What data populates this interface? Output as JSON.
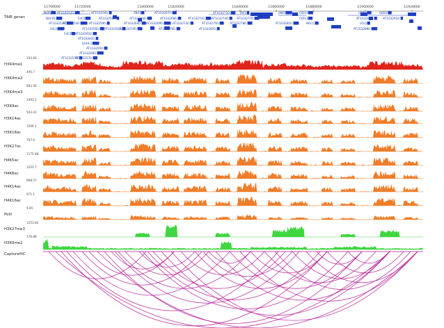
{
  "browser": {
    "axis_ticks": [
      "11700000",
      "11720000",
      "11800000",
      "11820000",
      "11840000",
      "11860000",
      "11880000",
      "11900000",
      "11920000"
    ],
    "genes_track": {
      "label": "TAIR genes",
      "color": "#1f3fc2",
      "gene_labels": [
        "NAP8",
        "AT1G32520.1",
        "AT1G32560.1",
        "ZBF1",
        "AT1G32670.1",
        "AT1G32710.1",
        "TAF1",
        "SNO1",
        "CID11",
        "UBP11",
        "GBSS1",
        "NAC011",
        "FdC2",
        "AT1G32580.1",
        "AT1G32630.1",
        "AT1G32680.1",
        "AT1G32720.1",
        "AT1G32740.1",
        "AT1G32770.1",
        "CID11",
        "AT1G32860.1",
        "AT1G32910.1",
        "AT1G32530.1",
        "AT1G32540.1",
        "AT1G32590.1",
        "AT1G32640.1",
        "AT1G32690.1",
        "AT1G32730.1",
        "AT1G32750.1",
        "AT1G32780.1",
        "AT1G32810.2",
        "NAC13",
        "LOL1",
        "LOL1",
        "AT1G32583.1",
        "AT1G32600.1",
        "AT1G32700.1",
        "AT1G32760.1",
        "AT1G32850.1",
        "AT1G32880.1",
        "FdC2",
        "AT1G32610.1",
        "AT1G32620.1",
        "LEA4-1",
        "AT1G32650.1",
        "AT1G32660.1",
        "AT1G32570.2",
        "AT1G32570.1"
      ]
    },
    "tracks": [
      {
        "label": "H3K4me1",
        "scale": "250.83",
        "color": "#e0241b"
      },
      {
        "label": "H3K4me2",
        "scale": "495.7",
        "color": "#ef7d2a"
      },
      {
        "label": "H3K4me3",
        "scale": "892.56",
        "color": "#ef7d2a"
      },
      {
        "label": "H3K9ac",
        "scale": "1493.1",
        "color": "#ef7d2a"
      },
      {
        "label": "H3K14ac",
        "scale": "503.41",
        "color": "#ef7d2a"
      },
      {
        "label": "H3K18ac",
        "scale": "1506.1",
        "color": "#ef7d2a"
      },
      {
        "label": "H3K27ac",
        "scale": "797.9",
        "color": "#ef7d2a"
      },
      {
        "label": "H4K5ac",
        "scale": "1175.88",
        "color": "#ef7d2a"
      },
      {
        "label": "H4K8ac",
        "scale": "1255.7",
        "color": "#ef7d2a"
      },
      {
        "label": "H4K14ac",
        "scale": "968.57",
        "color": "#ef7d2a"
      },
      {
        "label": "H4K16ac",
        "scale": "971.1",
        "color": "#ef7d2a"
      },
      {
        "label": "PolII",
        "scale": "9.65",
        "color": "#ef7d2a"
      },
      {
        "label": "H3K27me3",
        "scale": "1253.84",
        "color": "#3fd63f"
      },
      {
        "label": "H3K9me2",
        "scale": "176.89",
        "color": "#3fd63f"
      }
    ],
    "capture_track": {
      "label": "CaptureHiC",
      "color": "#b0148f"
    }
  }
}
